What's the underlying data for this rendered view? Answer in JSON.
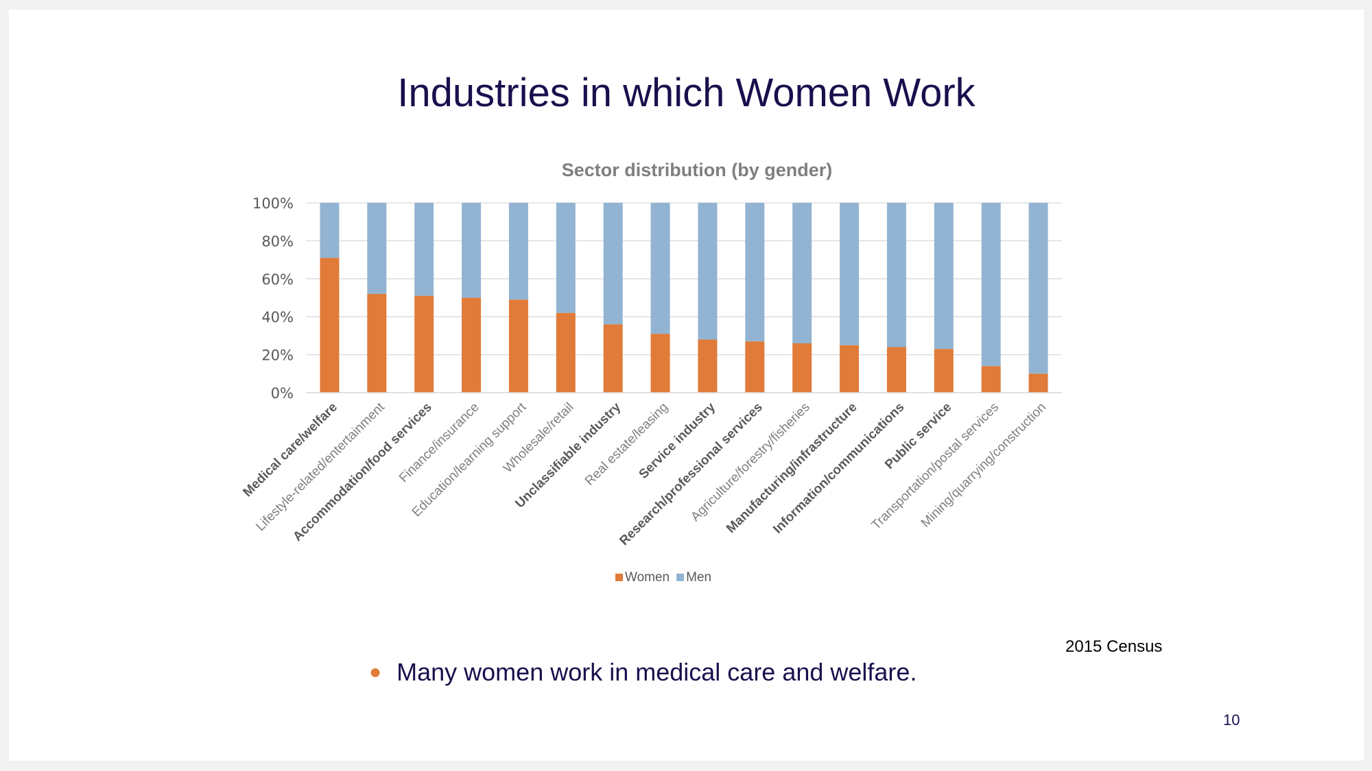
{
  "slide": {
    "title": "Industries in which Women Work",
    "source_note": "2015 Census",
    "bullet": "Many women work in medical care and welfare.",
    "page_number": "10"
  },
  "colors": {
    "women": "#e07b39",
    "men": "#92b4d2",
    "title": "#1a0f4d",
    "bullet_dot": "#e07b39"
  },
  "chart_data": {
    "type": "bar",
    "stacked": true,
    "title": "Sector distribution (by gender)",
    "xlabel": "",
    "ylabel": "",
    "ylim": [
      0,
      100
    ],
    "yticks": [
      "0%",
      "20%",
      "40%",
      "60%",
      "80%",
      "100%"
    ],
    "grid": true,
    "legend_position": "bottom",
    "categories": [
      "Medical care/welfare",
      "Lifestyle-related/entertainment",
      "Accommodation/food services",
      "Finance/insurance",
      "Education/learning support",
      "Wholesale/retail",
      "Unclassifiable industry",
      "Real estate/leasing",
      "Service industry",
      "Research/professional services",
      "Agriculture/forestry/fisheries",
      "Manufacturing/infrastructure",
      "Information/communications",
      "Public service",
      "Transportation/postal services",
      "Mining/quarrying/construction"
    ],
    "bold_categories": [
      "Medical care/welfare",
      "Accommodation/food services",
      "Unclassifiable industry",
      "Service industry",
      "Research/professional services",
      "Manufacturing/infrastructure",
      "Information/communications",
      "Public service"
    ],
    "series": [
      {
        "name": "Women",
        "values": [
          71,
          52,
          51,
          50,
          49,
          42,
          36,
          31,
          28,
          27,
          26,
          25,
          24,
          23,
          14,
          10
        ]
      },
      {
        "name": "Men",
        "values": [
          29,
          48,
          49,
          50,
          51,
          58,
          64,
          69,
          72,
          73,
          74,
          75,
          76,
          77,
          86,
          90
        ]
      }
    ]
  }
}
